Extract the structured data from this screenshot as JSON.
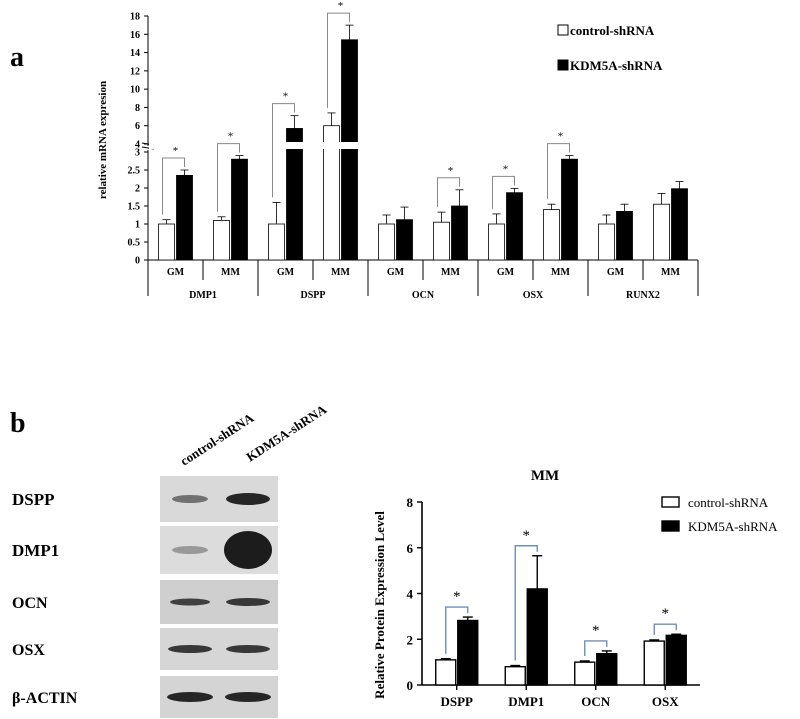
{
  "panel_labels": {
    "a": "a",
    "b": "b"
  },
  "chart_data": [
    {
      "panel": "a",
      "type": "bar",
      "ylabel": "relative mRNA expresion",
      "y_axis_break": {
        "from": 3.0,
        "to": 4.0
      },
      "y_ticks_lower": [
        "0",
        "0.5",
        "1",
        "1.5",
        "2",
        "2.5",
        "3"
      ],
      "y_ticks_upper": [
        "4",
        "6",
        "8",
        "10",
        "12",
        "14",
        "16",
        "18"
      ],
      "legend": [
        "control-shRNA",
        "KDM5A-shRNA"
      ],
      "legend_position": "top-right",
      "genes": [
        "DMP1",
        "DSPP",
        "OCN",
        "OSX",
        "RUNX2"
      ],
      "conditions": [
        "GM",
        "MM"
      ],
      "series": [
        {
          "name": "control-shRNA",
          "values": [
            1.0,
            1.1,
            1.0,
            6.0,
            1.0,
            1.05,
            1.0,
            1.4,
            1.0,
            1.55
          ],
          "errors": [
            0.12,
            0.1,
            0.6,
            1.4,
            0.25,
            0.28,
            0.28,
            0.15,
            0.25,
            0.3
          ]
        },
        {
          "name": "KDM5A-shRNA",
          "values": [
            2.35,
            2.8,
            5.7,
            15.4,
            1.12,
            1.5,
            1.87,
            2.8,
            1.35,
            1.98
          ],
          "errors": [
            0.15,
            0.1,
            1.4,
            1.6,
            0.35,
            0.45,
            0.12,
            0.1,
            0.2,
            0.2
          ]
        }
      ],
      "significance": [
        "*",
        "*",
        "*",
        "*",
        "",
        "*",
        "*",
        "*",
        "",
        ""
      ]
    },
    {
      "panel": "b",
      "type": "bar",
      "title": "MM",
      "ylabel": "Relative Protein Expression Level",
      "categories": [
        "DSPP",
        "DMP1",
        "OCN",
        "OSX"
      ],
      "ylim": [
        0,
        8
      ],
      "y_ticks": [
        "0",
        "2",
        "4",
        "6",
        "8"
      ],
      "legend": [
        "control-shRNA",
        "KDM5A-shRNA"
      ],
      "legend_position": "top-right",
      "series": [
        {
          "name": "control-shRNA",
          "values": [
            1.1,
            0.8,
            1.0,
            1.92
          ],
          "errors": [
            0.05,
            0.05,
            0.05,
            0.05
          ]
        },
        {
          "name": "KDM5A-shRNA",
          "values": [
            2.82,
            4.2,
            1.37,
            2.17
          ],
          "errors": [
            0.15,
            1.45,
            0.12,
            0.05
          ]
        }
      ],
      "significance": [
        "*",
        "*",
        "*",
        "*"
      ]
    }
  ],
  "western_blot": {
    "lane_labels": [
      "control-shRNA",
      "KDM5A-shRNA"
    ],
    "proteins": [
      "DSPP",
      "DMP1",
      "OCN",
      "OSX",
      "β-ACTIN"
    ]
  }
}
